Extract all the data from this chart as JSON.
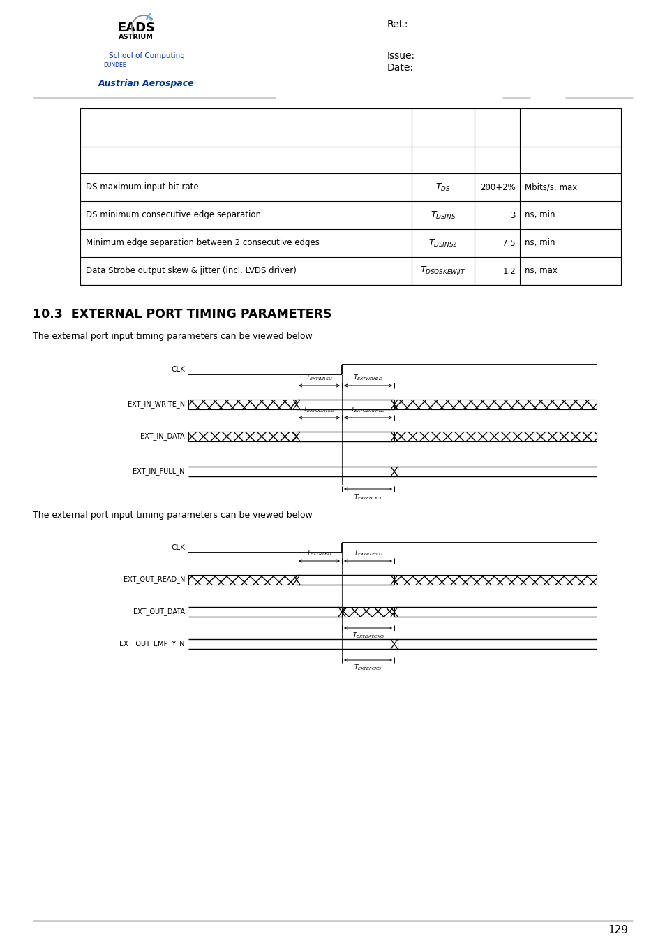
{
  "page_number": "129",
  "ref_label": "Ref.:",
  "issue_label": "Issue:",
  "date_label": "Date:",
  "table_rows": [
    [
      "DS maximum input bit rate",
      "T",
      "DS",
      "200+2%",
      "Mbits/s, max"
    ],
    [
      "DS minimum consecutive edge separation",
      "T",
      "DSINS",
      "3",
      "ns, min"
    ],
    [
      "Minimum edge separation between 2 consecutive edges",
      "T",
      "DSINS2",
      "7.5",
      "ns, min"
    ],
    [
      "Data Strobe output skew & jitter (incl. LVDS driver)",
      "T",
      "DSOSKEWJIT",
      "1.2",
      "ns, max"
    ]
  ],
  "section_title": "10.3  EXTERNAL PORT TIMING PARAMETERS",
  "diagram1_caption": "The external port input timing parameters can be viewed below",
  "diagram2_caption": "The external port input timing parameters can be viewed below",
  "bg_color": "#ffffff"
}
